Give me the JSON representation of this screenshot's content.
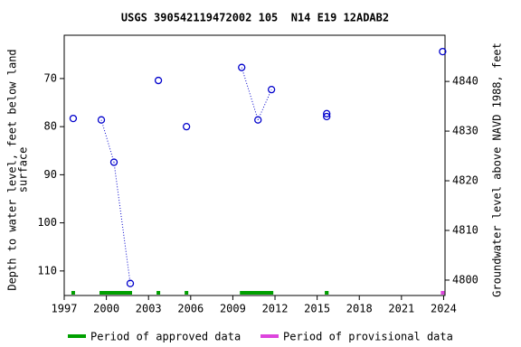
{
  "chart_data": {
    "type": "scatter",
    "title": "USGS 390542119472002 105  N14 E19 12ADAB2",
    "ylabel": [
      "Depth to water level, feet below land",
      "surface"
    ],
    "y2label": "Groundwater level above NAVD 1988, feet",
    "xlim": [
      1997,
      2024.1
    ],
    "xticks": [
      1997,
      2000,
      2003,
      2006,
      2009,
      2012,
      2015,
      2018,
      2021,
      2024
    ],
    "ylim": [
      115.1,
      61
    ],
    "yticks": [
      70,
      80,
      90,
      100,
      110
    ],
    "y2lim": [
      4796.9,
      4849.3
    ],
    "y2ticks": [
      4800,
      4810,
      4820,
      4830,
      4840
    ],
    "marker_color": "#0000cc",
    "series": [
      {
        "name": "Period of approved data",
        "color": "#00a000",
        "x": [
          1997.64,
          1999.64,
          2000.54,
          2001.7,
          2003.7,
          2005.7,
          2009.63,
          2010.79,
          2011.75,
          2015.68,
          2015.68
        ],
        "values": [
          78.3,
          78.6,
          87.4,
          112.6,
          70.4,
          80.0,
          67.7,
          78.6,
          72.3,
          77.3,
          77.9
        ]
      },
      {
        "name": "Period of provisional data",
        "color": "#dd44dd",
        "x": [
          2023.93
        ],
        "values": [
          64.4
        ]
      }
    ]
  }
}
